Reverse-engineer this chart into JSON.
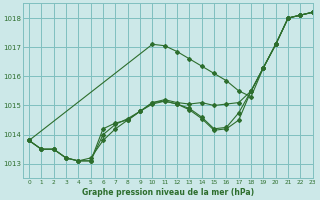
{
  "bg_color": "#cce8e8",
  "grid_color": "#7fbfbf",
  "line_color": "#2d6e2d",
  "title": "Graphe pression niveau de la mer (hPa)",
  "xlim": [
    -0.5,
    23
  ],
  "ylim": [
    1012.5,
    1018.5
  ],
  "yticks": [
    1013,
    1014,
    1015,
    1016,
    1017,
    1018
  ],
  "xticks": [
    0,
    1,
    2,
    3,
    4,
    5,
    6,
    7,
    8,
    9,
    10,
    11,
    12,
    13,
    14,
    15,
    16,
    17,
    18,
    19,
    20,
    21,
    22,
    23
  ],
  "series": [
    {
      "x": [
        0,
        1,
        2,
        3,
        4,
        5,
        6,
        7,
        8,
        9,
        10,
        11,
        12,
        13,
        14,
        15,
        16,
        17,
        18,
        19,
        20,
        21,
        22,
        23
      ],
      "y": [
        1013.8,
        1013.5,
        1013.5,
        1013.2,
        1013.1,
        1013.1,
        1014.2,
        1014.4,
        1014.5,
        1014.8,
        1015.1,
        1015.15,
        1015.05,
        1014.85,
        1014.55,
        1014.15,
        1014.2,
        1014.5,
        1015.5,
        1016.3,
        1017.1,
        1018.0,
        1018.1,
        1018.2
      ]
    },
    {
      "x": [
        0,
        1,
        2,
        3,
        4,
        5,
        6,
        7,
        8,
        9,
        10,
        11,
        12,
        13,
        14,
        15,
        16,
        17,
        18,
        19,
        20,
        21,
        22,
        23
      ],
      "y": [
        1013.8,
        1013.5,
        1013.5,
        1013.2,
        1013.1,
        1013.2,
        1013.8,
        1014.2,
        1014.5,
        1014.8,
        1015.1,
        1015.2,
        1015.1,
        1015.05,
        1015.1,
        1015.0,
        1015.05,
        1015.1,
        1015.5,
        1016.3,
        1017.1,
        1018.0,
        1018.1,
        1018.2
      ]
    },
    {
      "x": [
        0,
        1,
        2,
        3,
        4,
        5,
        6,
        7,
        8,
        9,
        10,
        11,
        12,
        13,
        14,
        15,
        16,
        17,
        18,
        19,
        20,
        21,
        22,
        23
      ],
      "y": [
        1013.8,
        1013.5,
        1013.5,
        1013.2,
        1013.1,
        1013.1,
        1014.0,
        1014.35,
        1014.55,
        1014.8,
        1015.05,
        1015.15,
        1015.05,
        1014.9,
        1014.6,
        1014.2,
        1014.25,
        1014.75,
        1015.5,
        1016.3,
        1017.1,
        1018.0,
        1018.1,
        1018.2
      ]
    },
    {
      "x": [
        0,
        10,
        11,
        12,
        13,
        14,
        15,
        16,
        17,
        18,
        19,
        20,
        21,
        22,
        23
      ],
      "y": [
        1013.8,
        1017.1,
        1017.05,
        1016.85,
        1016.6,
        1016.35,
        1016.1,
        1015.85,
        1015.5,
        1015.3,
        1016.3,
        1017.1,
        1018.0,
        1018.1,
        1018.2
      ]
    }
  ]
}
